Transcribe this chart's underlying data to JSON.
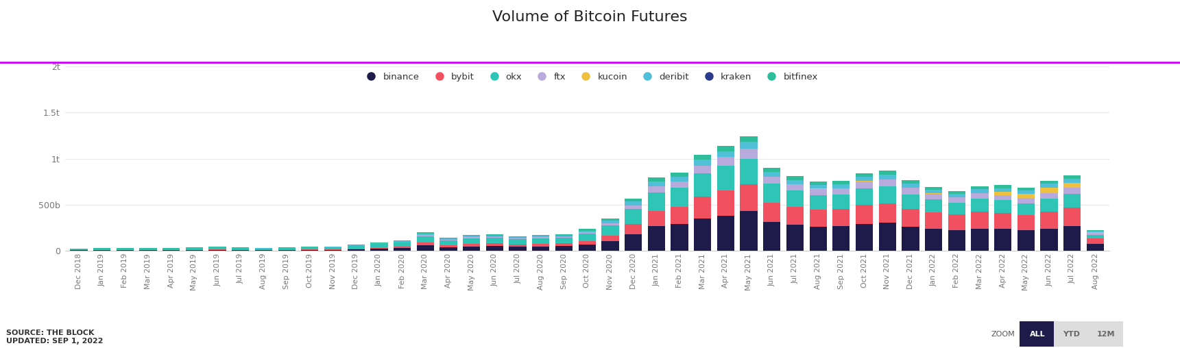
{
  "title": "Volume of Bitcoin Futures",
  "title_fontsize": 16,
  "background_color": "#ffffff",
  "accent_line_color": "#cc00ff",
  "categories": [
    "Dec 2018",
    "Jan 2019",
    "Feb 2019",
    "Mar 2019",
    "Apr 2019",
    "May 2019",
    "Jun 2019",
    "Jul 2019",
    "Aug 2019",
    "Sep 2019",
    "Oct 2019",
    "Nov 2019",
    "Dec 2019",
    "Jan 2020",
    "Feb 2020",
    "Mar 2020",
    "Apr 2020",
    "May 2020",
    "Jun 2020",
    "Jul 2020",
    "Aug 2020",
    "Sep 2020",
    "Oct 2020",
    "Nov 2020",
    "Dec 2020",
    "Jan 2021",
    "Feb 2021",
    "Mar 2021",
    "Apr 2021",
    "May 2021",
    "Jun 2021",
    "Jul 2021",
    "Aug 2021",
    "Sep 2021",
    "Oct 2021",
    "Nov 2021",
    "Dec 2021",
    "Jan 2022",
    "Feb 2022",
    "Mar 2022",
    "Apr 2022",
    "May 2022",
    "Jun 2022",
    "Jul 2022",
    "Aug 2022"
  ],
  "series": {
    "binance": [
      5,
      5,
      5,
      5,
      5,
      5,
      8,
      5,
      5,
      5,
      8,
      8,
      12,
      20,
      25,
      55,
      35,
      45,
      50,
      42,
      45,
      50,
      65,
      100,
      180,
      270,
      290,
      350,
      380,
      430,
      310,
      280,
      260,
      265,
      290,
      300,
      260,
      240,
      225,
      240,
      235,
      220,
      240,
      265,
      75
    ],
    "bybit": [
      2,
      2,
      2,
      2,
      2,
      3,
      3,
      3,
      3,
      3,
      4,
      5,
      7,
      10,
      15,
      30,
      22,
      28,
      28,
      25,
      30,
      30,
      40,
      65,
      110,
      160,
      185,
      240,
      270,
      290,
      210,
      195,
      185,
      185,
      210,
      215,
      190,
      175,
      165,
      180,
      175,
      165,
      185,
      200,
      55
    ],
    "okx": [
      10,
      12,
      12,
      14,
      14,
      18,
      22,
      18,
      16,
      18,
      22,
      24,
      32,
      40,
      45,
      72,
      55,
      62,
      62,
      56,
      60,
      60,
      78,
      110,
      160,
      200,
      205,
      250,
      270,
      280,
      205,
      175,
      160,
      158,
      178,
      182,
      162,
      143,
      132,
      143,
      136,
      130,
      143,
      155,
      42
    ],
    "ftx": [
      0,
      0,
      0,
      0,
      0,
      0,
      0,
      0,
      0,
      0,
      0,
      0,
      0,
      3,
      5,
      12,
      8,
      10,
      10,
      8,
      10,
      10,
      14,
      22,
      40,
      65,
      70,
      85,
      95,
      105,
      78,
      70,
      65,
      65,
      74,
      76,
      68,
      60,
      56,
      61,
      56,
      54,
      59,
      63,
      18
    ],
    "kucoin": [
      0,
      0,
      0,
      0,
      0,
      0,
      0,
      0,
      0,
      0,
      0,
      0,
      0,
      0,
      0,
      0,
      0,
      0,
      0,
      0,
      0,
      0,
      0,
      0,
      0,
      0,
      0,
      0,
      0,
      4,
      3,
      3,
      3,
      3,
      3,
      3,
      3,
      3,
      3,
      3,
      38,
      48,
      60,
      52,
      10
    ],
    "deribit": [
      2,
      3,
      3,
      3,
      3,
      4,
      4,
      3,
      3,
      3,
      4,
      5,
      7,
      8,
      10,
      18,
      13,
      15,
      15,
      13,
      15,
      15,
      20,
      27,
      42,
      52,
      52,
      62,
      66,
      72,
      52,
      46,
      43,
      43,
      48,
      50,
      45,
      40,
      36,
      40,
      38,
      36,
      40,
      43,
      12
    ],
    "kraken": [
      0,
      0,
      0,
      0,
      0,
      0,
      0,
      0,
      0,
      0,
      0,
      0,
      0,
      0,
      0,
      0,
      0,
      0,
      0,
      0,
      0,
      0,
      0,
      0,
      0,
      0,
      0,
      0,
      0,
      0,
      0,
      0,
      0,
      0,
      0,
      0,
      0,
      0,
      0,
      0,
      0,
      0,
      0,
      0,
      0
    ],
    "bitfinex": [
      2,
      3,
      3,
      3,
      3,
      4,
      4,
      3,
      3,
      3,
      4,
      4,
      6,
      7,
      8,
      15,
      10,
      12,
      12,
      10,
      12,
      12,
      16,
      22,
      35,
      45,
      45,
      52,
      57,
      59,
      43,
      38,
      36,
      36,
      40,
      41,
      36,
      33,
      31,
      33,
      32,
      30,
      33,
      36,
      9
    ]
  },
  "colors": {
    "binance": "#1e1b4b",
    "bybit": "#f05060",
    "okx": "#2ec4b6",
    "ftx": "#b8aadc",
    "kucoin": "#f0c040",
    "deribit": "#50c0d8",
    "kraken": "#2a3a8c",
    "bitfinex": "#2ebc9a"
  },
  "legend_order": [
    "binance",
    "bybit",
    "okx",
    "ftx",
    "kucoin",
    "deribit",
    "kraken",
    "bitfinex"
  ],
  "ylabel_ticks": [
    "0",
    "500b",
    "1t",
    "1.5t",
    "2t"
  ],
  "ytick_values": [
    0,
    500,
    1000,
    1500,
    2000
  ],
  "ylim": [
    0,
    2100
  ],
  "source_text": "SOURCE: THE BLOCK\nUPDATED: SEP 1, 2022",
  "zoom_label": "ZOOM",
  "zoom_buttons": [
    "ALL",
    "YTD",
    "12M"
  ]
}
